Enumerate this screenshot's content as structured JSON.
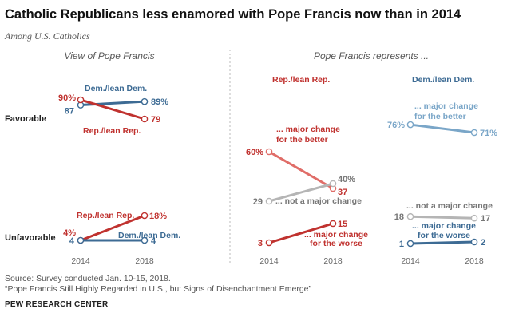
{
  "title": "Catholic Republicans less enamored with Pope Francis now than in 2014",
  "subtitle": "Among U.S. Catholics",
  "source": "Source: Survey conducted Jan. 10-15, 2018.",
  "report": "“Pope Francis Still Highly Regarded in U.S., but Signs of Disenchantment Emerge”",
  "org": "PEW RESEARCH CENTER",
  "colors": {
    "rep": "#c0322f",
    "rep_light": "#e06d68",
    "dem": "#3d6b94",
    "dem_light": "#7aa6c8",
    "gray": "#b5b5b5",
    "text_gray": "#777777"
  },
  "chart_data": [
    {
      "type": "line",
      "title": "View of Pope Francis",
      "x": [
        "2014",
        "2018"
      ],
      "row_labels": [
        "Favorable",
        "Unfavorable"
      ],
      "series": [
        {
          "name": "Dem./lean Dem.",
          "group": "Favorable",
          "values": [
            87,
            89
          ],
          "labels": [
            "87",
            "89%"
          ]
        },
        {
          "name": "Rep./lean Rep.",
          "group": "Favorable",
          "values": [
            90,
            79
          ],
          "labels": [
            "90%",
            "79"
          ]
        },
        {
          "name": "Rep./lean Rep.",
          "group": "Unfavorable",
          "values": [
            4,
            18
          ],
          "labels": [
            "4%",
            "18%"
          ]
        },
        {
          "name": "Dem./lean Dem.",
          "group": "Unfavorable",
          "values": [
            4,
            4
          ],
          "labels": [
            "4",
            "4"
          ]
        }
      ]
    },
    {
      "type": "line",
      "title": "Pope Francis represents ...",
      "panel": "Rep./lean Rep.",
      "x": [
        "2014",
        "2018"
      ],
      "series": [
        {
          "name": "... major change for the better",
          "values": [
            60,
            37
          ],
          "labels": [
            "60%",
            "37"
          ]
        },
        {
          "name": "... not a major change",
          "values": [
            29,
            40
          ],
          "labels": [
            "29",
            "40%"
          ]
        },
        {
          "name": "... major change for the worse",
          "values": [
            3,
            15
          ],
          "labels": [
            "3",
            "15"
          ]
        }
      ]
    },
    {
      "type": "line",
      "title": "Pope Francis represents ...",
      "panel": "Dem./lean Dem.",
      "x": [
        "2014",
        "2018"
      ],
      "series": [
        {
          "name": "... major change for the better",
          "values": [
            76,
            71
          ],
          "labels": [
            "76%",
            "71%"
          ]
        },
        {
          "name": "... not a major change",
          "values": [
            18,
            17
          ],
          "labels": [
            "18",
            "17"
          ]
        },
        {
          "name": "... major change for the worse",
          "values": [
            1,
            2
          ],
          "labels": [
            "1",
            "2"
          ]
        }
      ]
    }
  ]
}
